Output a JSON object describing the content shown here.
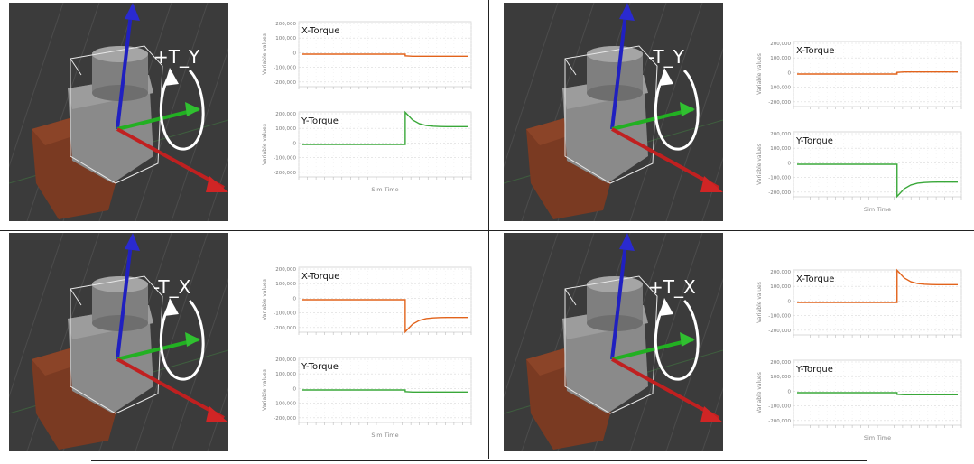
{
  "panels": [
    {
      "id": "top-left",
      "scene_label": "+T_Y",
      "charts": [
        {
          "title": "X-Torque",
          "color": "#e2631b",
          "shape": "step_down_small"
        },
        {
          "title": "Y-Torque",
          "color": "#3aa83a",
          "shape": "step_up_spike"
        }
      ]
    },
    {
      "id": "top-right",
      "scene_label": "-T_Y",
      "charts": [
        {
          "title": "X-Torque",
          "color": "#e2631b",
          "shape": "step_up_small"
        },
        {
          "title": "Y-Torque",
          "color": "#3aa83a",
          "shape": "step_down_spike"
        }
      ]
    },
    {
      "id": "bottom-left",
      "scene_label": "-T_X",
      "charts": [
        {
          "title": "X-Torque",
          "color": "#e2631b",
          "shape": "step_down_spike"
        },
        {
          "title": "Y-Torque",
          "color": "#3aa83a",
          "shape": "step_down_small"
        }
      ]
    },
    {
      "id": "bottom-right",
      "scene_label": "+T_X",
      "charts": [
        {
          "title": "X-Torque",
          "color": "#e2631b",
          "shape": "step_up_spike"
        },
        {
          "title": "Y-Torque",
          "color": "#3aa83a",
          "shape": "step_down_small"
        }
      ]
    }
  ],
  "chart_data": [
    {
      "type": "line",
      "title": "X-Torque",
      "ylabel": "Variable values",
      "xlabel": "",
      "yticks": [
        "200,000",
        "100,000",
        "0",
        "-100,000",
        "-200,000"
      ],
      "ylim": [
        -200000,
        200000
      ],
      "series": [
        {
          "values": [
            0,
            0,
            0,
            0,
            0,
            0,
            0,
            0,
            0,
            0,
            0,
            0,
            0,
            0,
            0,
            -12000,
            -15000,
            -15000,
            -15000,
            -15000,
            -15000,
            -15000,
            -15000,
            -15000,
            -15000
          ]
        }
      ]
    },
    {
      "type": "line",
      "title": "Y-Torque",
      "ylabel": "Variable values",
      "xlabel": "Sim Time",
      "yticks": [
        "200,000",
        "100,000",
        "0",
        "-100,000",
        "-200,000"
      ],
      "ylim": [
        -200000,
        200000
      ],
      "series": [
        {
          "values": [
            0,
            0,
            0,
            0,
            0,
            0,
            0,
            0,
            0,
            0,
            0,
            0,
            0,
            0,
            0,
            230000,
            175000,
            148000,
            135000,
            130000,
            128000,
            127000,
            127000,
            127000,
            127000
          ]
        }
      ]
    },
    {
      "type": "line",
      "title": "X-Torque",
      "ylabel": "Variable values",
      "xlabel": "",
      "yticks": [
        "200,000",
        "100,000",
        "0",
        "-100,000",
        "-200,000"
      ],
      "ylim": [
        -200000,
        200000
      ],
      "series": [
        {
          "values": [
            0,
            0,
            0,
            0,
            0,
            0,
            0,
            0,
            0,
            0,
            0,
            0,
            0,
            0,
            0,
            12000,
            15000,
            15000,
            15000,
            15000,
            15000,
            15000,
            15000,
            15000,
            15000
          ]
        }
      ]
    },
    {
      "type": "line",
      "title": "Y-Torque",
      "ylabel": "Variable values",
      "xlabel": "Sim Time",
      "yticks": [
        "200,000",
        "100,000",
        "0",
        "-100,000",
        "-200,000"
      ],
      "ylim": [
        -200000,
        200000
      ],
      "series": [
        {
          "values": [
            0,
            0,
            0,
            0,
            0,
            0,
            0,
            0,
            0,
            0,
            0,
            0,
            0,
            0,
            0,
            -230000,
            -175000,
            -148000,
            -135000,
            -130000,
            -128000,
            -127000,
            -127000,
            -127000,
            -127000
          ]
        }
      ]
    },
    {
      "type": "line",
      "title": "X-Torque",
      "ylabel": "Variable values",
      "xlabel": "",
      "yticks": [
        "200,000",
        "100,000",
        "0",
        "-100,000",
        "-200,000"
      ],
      "ylim": [
        -200000,
        200000
      ],
      "series": [
        {
          "values": [
            0,
            0,
            0,
            0,
            0,
            0,
            0,
            0,
            0,
            0,
            0,
            0,
            0,
            0,
            0,
            -230000,
            -175000,
            -148000,
            -135000,
            -130000,
            -128000,
            -127000,
            -127000,
            -127000,
            -127000
          ]
        }
      ]
    },
    {
      "type": "line",
      "title": "Y-Torque",
      "ylabel": "Variable values",
      "xlabel": "Sim Time",
      "yticks": [
        "200,000",
        "100,000",
        "0",
        "-100,000",
        "-200,000"
      ],
      "ylim": [
        -200000,
        200000
      ],
      "series": [
        {
          "values": [
            0,
            0,
            0,
            0,
            0,
            0,
            0,
            0,
            0,
            0,
            0,
            0,
            0,
            0,
            0,
            -12000,
            -15000,
            -15000,
            -15000,
            -15000,
            -15000,
            -15000,
            -15000,
            -15000,
            -15000
          ]
        }
      ]
    },
    {
      "type": "line",
      "title": "X-Torque",
      "ylabel": "Variable values",
      "xlabel": "",
      "yticks": [
        "200,000",
        "100,000",
        "0",
        "-100,000",
        "-200,000"
      ],
      "ylim": [
        -200000,
        200000
      ],
      "series": [
        {
          "values": [
            0,
            0,
            0,
            0,
            0,
            0,
            0,
            0,
            0,
            0,
            0,
            0,
            0,
            0,
            0,
            230000,
            175000,
            148000,
            135000,
            130000,
            128000,
            127000,
            127000,
            127000,
            127000
          ]
        }
      ]
    },
    {
      "type": "line",
      "title": "Y-Torque",
      "ylabel": "Variable values",
      "xlabel": "Sim Time",
      "yticks": [
        "200,000",
        "100,000",
        "0",
        "-100,000",
        "-200,000"
      ],
      "ylim": [
        -200000,
        200000
      ],
      "series": [
        {
          "values": [
            0,
            0,
            0,
            0,
            0,
            0,
            0,
            0,
            0,
            0,
            0,
            0,
            0,
            0,
            0,
            -12000,
            -15000,
            -15000,
            -15000,
            -15000,
            -15000,
            -15000,
            -15000,
            -15000,
            -15000
          ]
        }
      ]
    }
  ]
}
